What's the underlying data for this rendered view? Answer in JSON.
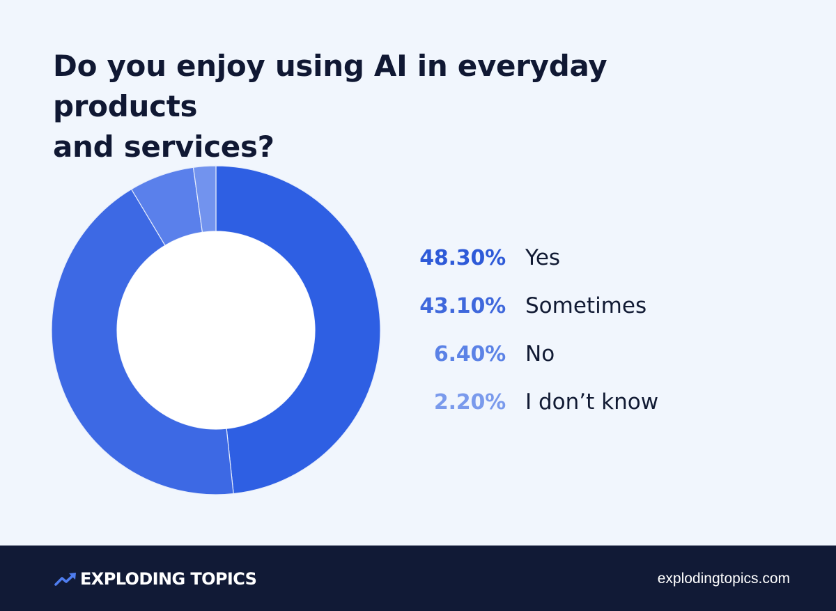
{
  "chart_data": {
    "type": "pie",
    "title": "Do you enjoy using AI in everyday products and services?",
    "title_lines": [
      "Do you enjoy using AI in everyday products",
      "and services?"
    ],
    "categories": [
      "Yes",
      "Sometimes",
      "No",
      "I don’t know"
    ],
    "values": [
      48.3,
      43.1,
      6.4,
      2.2
    ],
    "value_labels": [
      "48.30%",
      "43.10%",
      "6.40%",
      "2.20%"
    ],
    "colors": [
      "#2e5fe3",
      "#3d69e4",
      "#5a80eb",
      "#7293ee"
    ],
    "label_colors": [
      "#2e5ad8",
      "#3f68dc",
      "#5b82e6",
      "#7a9aec"
    ],
    "donut": true,
    "legend_position": "right"
  },
  "footer": {
    "brand": "EXPLODING TOPICS",
    "website": "explodingtopics.com",
    "brand_icon": "trending-up-arrow-icon"
  }
}
